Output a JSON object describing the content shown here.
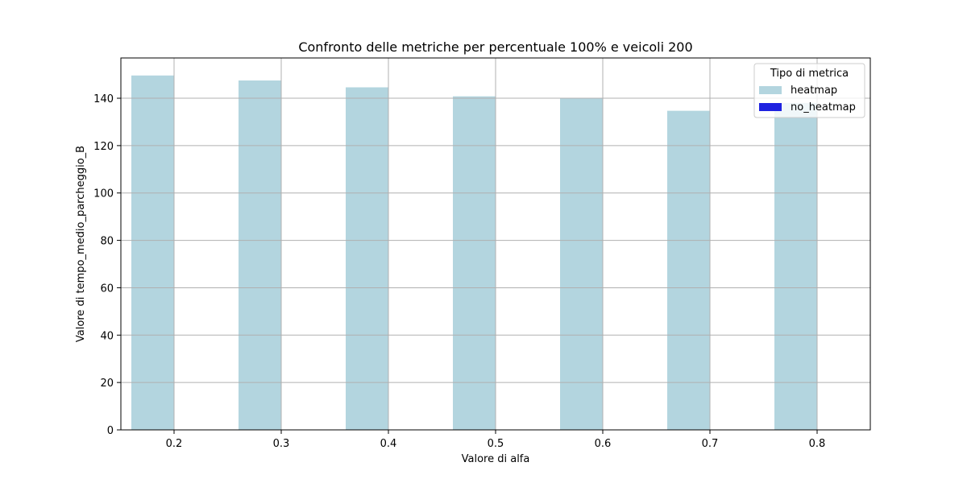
{
  "chart_data": {
    "type": "bar",
    "title": "Confronto delle metriche per percentuale 100% e veicoli 200",
    "xlabel": "Valore di alfa",
    "ylabel": "Valore di tempo_medio_parcheggio_B",
    "categories": [
      "0.2",
      "0.3",
      "0.4",
      "0.5",
      "0.6",
      "0.7",
      "0.8"
    ],
    "series": [
      {
        "name": "heatmap",
        "color": "#b3d5df",
        "values": [
          149.6,
          147.5,
          144.6,
          140.8,
          139.9,
          134.7,
          138.0
        ]
      },
      {
        "name": "no_heatmap",
        "color": "#1e22e0",
        "values": [
          0,
          0,
          0,
          0,
          0,
          0,
          0
        ]
      }
    ],
    "ylim": [
      0,
      157
    ],
    "yticks": [
      0,
      20,
      40,
      60,
      80,
      100,
      120,
      140
    ],
    "grid": true,
    "legend": {
      "title": "Tipo di metrica",
      "placement": "top-right"
    }
  }
}
